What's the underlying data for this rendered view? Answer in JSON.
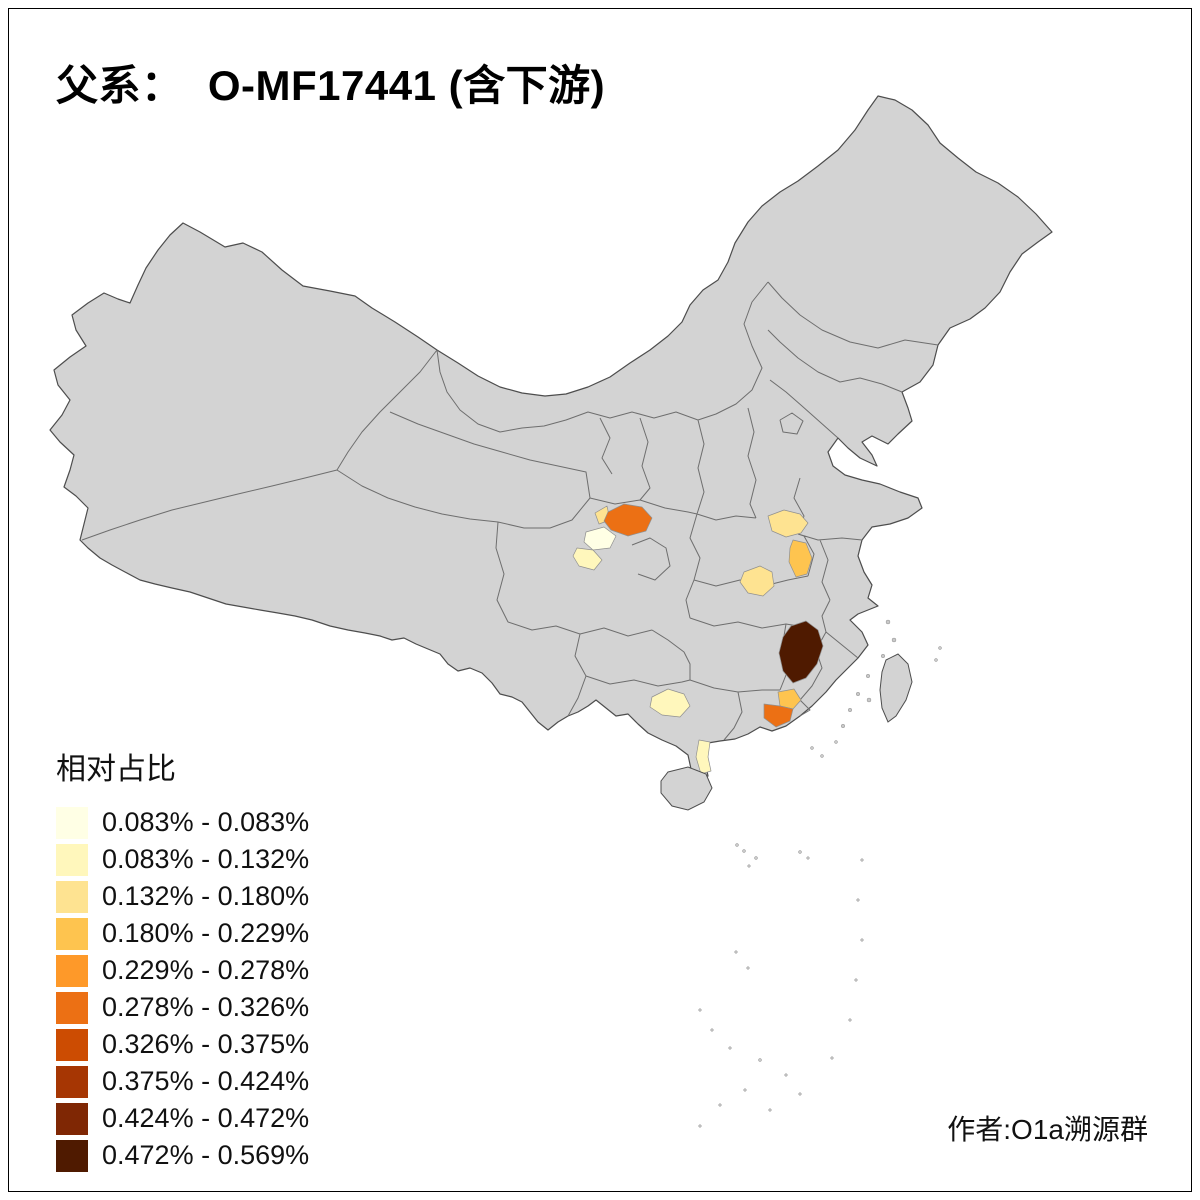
{
  "title": "父系：  O-MF17441 (含下游)",
  "legend": {
    "title": "相对占比",
    "classes": [
      {
        "label": "0.083% - 0.083%",
        "color": "#FFFFE5"
      },
      {
        "label": "0.083% - 0.132%",
        "color": "#FFF7BC"
      },
      {
        "label": "0.132% - 0.180%",
        "color": "#FEE391"
      },
      {
        "label": "0.180% - 0.229%",
        "color": "#FEC44F"
      },
      {
        "label": "0.229% - 0.278%",
        "color": "#FE9929"
      },
      {
        "label": "0.278% - 0.326%",
        "color": "#EC7014"
      },
      {
        "label": "0.326% - 0.375%",
        "color": "#CC4C02"
      },
      {
        "label": "0.375% - 0.424%",
        "color": "#A63603"
      },
      {
        "label": "0.424% - 0.472%",
        "color": "#7F2704"
      },
      {
        "label": "0.472% - 0.569%",
        "color": "#4F1A00"
      }
    ]
  },
  "attribution": "作者:O1a溯源群",
  "map": {
    "land_fill": "#D3D3D3",
    "border_color": "#4D4D4D",
    "province_border_color": "#6E6E6E",
    "sea_background": "#FFFFFF",
    "regions": [
      {
        "color": "#FEE391"
      },
      {
        "color": "#EC7014"
      },
      {
        "color": "#FFFFE5"
      },
      {
        "color": "#FFF7BC"
      },
      {
        "color": "#FEE391"
      },
      {
        "color": "#FEC44F"
      },
      {
        "color": "#FEE391"
      },
      {
        "color": "#4F1A00"
      },
      {
        "color": "#FEC44F"
      },
      {
        "color": "#EC7014"
      },
      {
        "color": "#FFF7BC"
      },
      {
        "color": "#FFF7BC"
      }
    ]
  }
}
